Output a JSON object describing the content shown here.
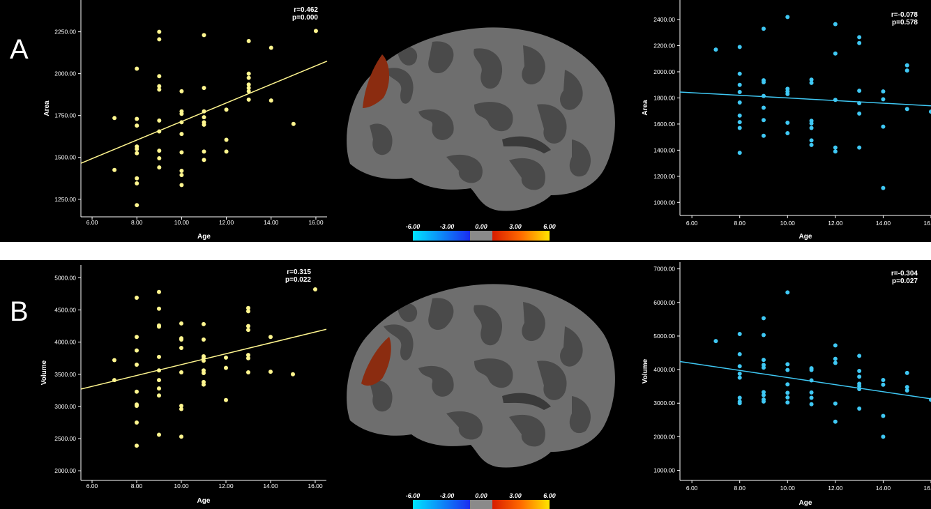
{
  "panels": {
    "a": {
      "letter": "A",
      "left_stats": {
        "r": "r=0.462",
        "p": "p=0.000"
      },
      "right_stats": {
        "r": "r=-0.078",
        "p": "p=0.578"
      }
    },
    "b": {
      "letter": "B",
      "left_stats": {
        "r": "r=0.315",
        "p": "p=0.022"
      },
      "right_stats": {
        "r": "r=-0.304",
        "p": "p=0.027"
      }
    }
  },
  "colorbar": {
    "labels": [
      "-6.00",
      "-3.00",
      "0.00",
      "3.00",
      "6.00"
    ]
  },
  "chart_data": [
    {
      "id": "a-left",
      "type": "scatter",
      "color": "#fff68f",
      "title": "",
      "xlabel": "Age",
      "ylabel": "Area",
      "xlim": [
        5.5,
        16.5
      ],
      "ylim": [
        1145,
        2440
      ],
      "xticks": [
        "6.00",
        "8.00",
        "10.00",
        "12.00",
        "14.00",
        "16.00"
      ],
      "yticks": [
        "1250.00",
        "1500.00",
        "1750.00",
        "2000.00",
        "2250.00"
      ],
      "annotation": [
        "r=0.462",
        "p=0.000"
      ],
      "fit_line": [
        [
          5.5,
          1465
        ],
        [
          16.5,
          2075
        ]
      ],
      "points": [
        [
          7,
          1735
        ],
        [
          7,
          1425
        ],
        [
          8,
          2030
        ],
        [
          8,
          1730
        ],
        [
          8,
          1690
        ],
        [
          8,
          1565
        ],
        [
          8,
          1550
        ],
        [
          8,
          1525
        ],
        [
          8,
          1375
        ],
        [
          8,
          1345
        ],
        [
          8,
          1215
        ],
        [
          9,
          2250
        ],
        [
          9,
          2205
        ],
        [
          9,
          1985
        ],
        [
          9,
          1925
        ],
        [
          9,
          1905
        ],
        [
          9,
          1720
        ],
        [
          9,
          1655
        ],
        [
          9,
          1540
        ],
        [
          9,
          1495
        ],
        [
          9,
          1440
        ],
        [
          10,
          1895
        ],
        [
          10,
          1775
        ],
        [
          10,
          1760
        ],
        [
          10,
          1710
        ],
        [
          10,
          1640
        ],
        [
          10,
          1530
        ],
        [
          10,
          1420
        ],
        [
          10,
          1395
        ],
        [
          10,
          1335
        ],
        [
          11,
          2230
        ],
        [
          11,
          1915
        ],
        [
          11,
          1775
        ],
        [
          11,
          1740
        ],
        [
          11,
          1710
        ],
        [
          11,
          1695
        ],
        [
          11,
          1535
        ],
        [
          11,
          1485
        ],
        [
          12,
          1785
        ],
        [
          12,
          1605
        ],
        [
          12,
          1535
        ],
        [
          13,
          2195
        ],
        [
          13,
          2000
        ],
        [
          13,
          1975
        ],
        [
          13,
          1935
        ],
        [
          13,
          1915
        ],
        [
          13,
          1895
        ],
        [
          13,
          1845
        ],
        [
          14,
          2155
        ],
        [
          14,
          1840
        ],
        [
          15,
          1700
        ],
        [
          16,
          2255
        ]
      ]
    },
    {
      "id": "a-right",
      "type": "scatter",
      "color": "#3fc8f4",
      "title": "",
      "xlabel": "Age",
      "ylabel": "Area",
      "xlim": [
        5.5,
        16.0
      ],
      "ylim": [
        900,
        2550
      ],
      "xticks": [
        "6.00",
        "8.00",
        "10.00",
        "12.00",
        "14.00",
        "16.00"
      ],
      "yticks": [
        "1000.00",
        "1200.00",
        "1400.00",
        "1600.00",
        "1800.00",
        "2000.00",
        "2200.00",
        "2400.00"
      ],
      "annotation": [
        "r=-0.078",
        "p=0.578"
      ],
      "fit_line": [
        [
          5.5,
          1845
        ],
        [
          16.0,
          1740
        ]
      ],
      "points": [
        [
          7,
          2170
        ],
        [
          8,
          2190
        ],
        [
          8,
          1985
        ],
        [
          8,
          1900
        ],
        [
          8,
          1845
        ],
        [
          8,
          1765
        ],
        [
          8,
          1665
        ],
        [
          8,
          1615
        ],
        [
          8,
          1570
        ],
        [
          8,
          1380
        ],
        [
          9,
          2330
        ],
        [
          9,
          1935
        ],
        [
          9,
          1920
        ],
        [
          9,
          1815
        ],
        [
          9,
          1725
        ],
        [
          9,
          1630
        ],
        [
          9,
          1510
        ],
        [
          10,
          2420
        ],
        [
          10,
          1870
        ],
        [
          10,
          1850
        ],
        [
          10,
          1830
        ],
        [
          10,
          1610
        ],
        [
          10,
          1530
        ],
        [
          11,
          1940
        ],
        [
          11,
          1915
        ],
        [
          11,
          1625
        ],
        [
          11,
          1605
        ],
        [
          11,
          1570
        ],
        [
          11,
          1475
        ],
        [
          11,
          1440
        ],
        [
          12,
          2365
        ],
        [
          12,
          2140
        ],
        [
          12,
          1785
        ],
        [
          12,
          1420
        ],
        [
          12,
          1390
        ],
        [
          13,
          2265
        ],
        [
          13,
          2220
        ],
        [
          13,
          1855
        ],
        [
          13,
          1760
        ],
        [
          13,
          1680
        ],
        [
          13,
          1420
        ],
        [
          14,
          1850
        ],
        [
          14,
          1790
        ],
        [
          14,
          1580
        ],
        [
          14,
          1110
        ],
        [
          15,
          2050
        ],
        [
          15,
          2010
        ],
        [
          15,
          1715
        ],
        [
          16,
          1695
        ]
      ]
    },
    {
      "id": "b-left",
      "type": "scatter",
      "color": "#fff68f",
      "title": "",
      "xlabel": "Age",
      "ylabel": "Volume",
      "xlim": [
        5.5,
        16.5
      ],
      "ylim": [
        1850,
        5200
      ],
      "xticks": [
        "6.00",
        "8.00",
        "10.00",
        "12.00",
        "14.00",
        "16.00"
      ],
      "yticks": [
        "2000.00",
        "2500.00",
        "3000.00",
        "3500.00",
        "4000.00",
        "4500.00",
        "5000.00"
      ],
      "annotation": [
        "r=0.315",
        "p=0.022"
      ],
      "fit_line": [
        [
          5.5,
          3270
        ],
        [
          16.5,
          4200
        ]
      ],
      "points": [
        [
          7,
          3720
        ],
        [
          7,
          3410
        ],
        [
          8,
          4690
        ],
        [
          8,
          4080
        ],
        [
          8,
          3870
        ],
        [
          8,
          3650
        ],
        [
          8,
          3230
        ],
        [
          8,
          3030
        ],
        [
          8,
          3010
        ],
        [
          8,
          2750
        ],
        [
          8,
          2390
        ],
        [
          9,
          4780
        ],
        [
          9,
          4520
        ],
        [
          9,
          4260
        ],
        [
          9,
          4240
        ],
        [
          9,
          3770
        ],
        [
          9,
          3560
        ],
        [
          9,
          3410
        ],
        [
          9,
          3280
        ],
        [
          9,
          3170
        ],
        [
          9,
          2560
        ],
        [
          10,
          4290
        ],
        [
          10,
          4060
        ],
        [
          10,
          4040
        ],
        [
          10,
          3910
        ],
        [
          10,
          3530
        ],
        [
          10,
          3010
        ],
        [
          10,
          2960
        ],
        [
          10,
          2530
        ],
        [
          11,
          4280
        ],
        [
          11,
          4040
        ],
        [
          11,
          3780
        ],
        [
          11,
          3750
        ],
        [
          11,
          3710
        ],
        [
          11,
          3560
        ],
        [
          11,
          3520
        ],
        [
          11,
          3380
        ],
        [
          11,
          3340
        ],
        [
          12,
          3760
        ],
        [
          12,
          3600
        ],
        [
          12,
          3100
        ],
        [
          13,
          4530
        ],
        [
          13,
          4480
        ],
        [
          13,
          4250
        ],
        [
          13,
          4190
        ],
        [
          13,
          3800
        ],
        [
          13,
          3750
        ],
        [
          13,
          3530
        ],
        [
          14,
          4080
        ],
        [
          14,
          3540
        ],
        [
          15,
          3500
        ],
        [
          16,
          4820
        ]
      ]
    },
    {
      "id": "b-right",
      "type": "scatter",
      "color": "#3fc8f4",
      "title": "",
      "xlabel": "Age",
      "ylabel": "Volume",
      "xlim": [
        5.5,
        16.0
      ],
      "ylim": [
        700,
        7200
      ],
      "xticks": [
        "6.00",
        "8.00",
        "10.00",
        "12.00",
        "14.00",
        "16.00"
      ],
      "yticks": [
        "1000.00",
        "2000.00",
        "3000.00",
        "4000.00",
        "5000.00",
        "6000.00",
        "7000.00"
      ],
      "annotation": [
        "r=-0.304",
        "p=0.027"
      ],
      "fit_line": [
        [
          5.5,
          4240
        ],
        [
          16.0,
          3130
        ]
      ],
      "points": [
        [
          7,
          4850
        ],
        [
          8,
          5060
        ],
        [
          8,
          4460
        ],
        [
          8,
          4100
        ],
        [
          8,
          3880
        ],
        [
          8,
          3760
        ],
        [
          8,
          3160
        ],
        [
          8,
          3050
        ],
        [
          8,
          3000
        ],
        [
          9,
          5530
        ],
        [
          9,
          5030
        ],
        [
          9,
          4290
        ],
        [
          9,
          4140
        ],
        [
          9,
          4060
        ],
        [
          9,
          3330
        ],
        [
          9,
          3240
        ],
        [
          9,
          3110
        ],
        [
          9,
          3050
        ],
        [
          10,
          6300
        ],
        [
          10,
          4160
        ],
        [
          10,
          3990
        ],
        [
          10,
          3560
        ],
        [
          10,
          3310
        ],
        [
          10,
          3170
        ],
        [
          10,
          3020
        ],
        [
          11,
          4040
        ],
        [
          11,
          3990
        ],
        [
          11,
          3680
        ],
        [
          11,
          3320
        ],
        [
          11,
          3160
        ],
        [
          11,
          2970
        ],
        [
          12,
          4720
        ],
        [
          12,
          4320
        ],
        [
          12,
          4200
        ],
        [
          12,
          2990
        ],
        [
          12,
          2450
        ],
        [
          13,
          4410
        ],
        [
          13,
          3960
        ],
        [
          13,
          3790
        ],
        [
          13,
          3580
        ],
        [
          13,
          3510
        ],
        [
          13,
          3420
        ],
        [
          13,
          2840
        ],
        [
          14,
          3690
        ],
        [
          14,
          3550
        ],
        [
          14,
          2620
        ],
        [
          14,
          2000
        ],
        [
          15,
          3900
        ],
        [
          15,
          3480
        ],
        [
          15,
          3380
        ],
        [
          16,
          3100
        ]
      ]
    }
  ]
}
